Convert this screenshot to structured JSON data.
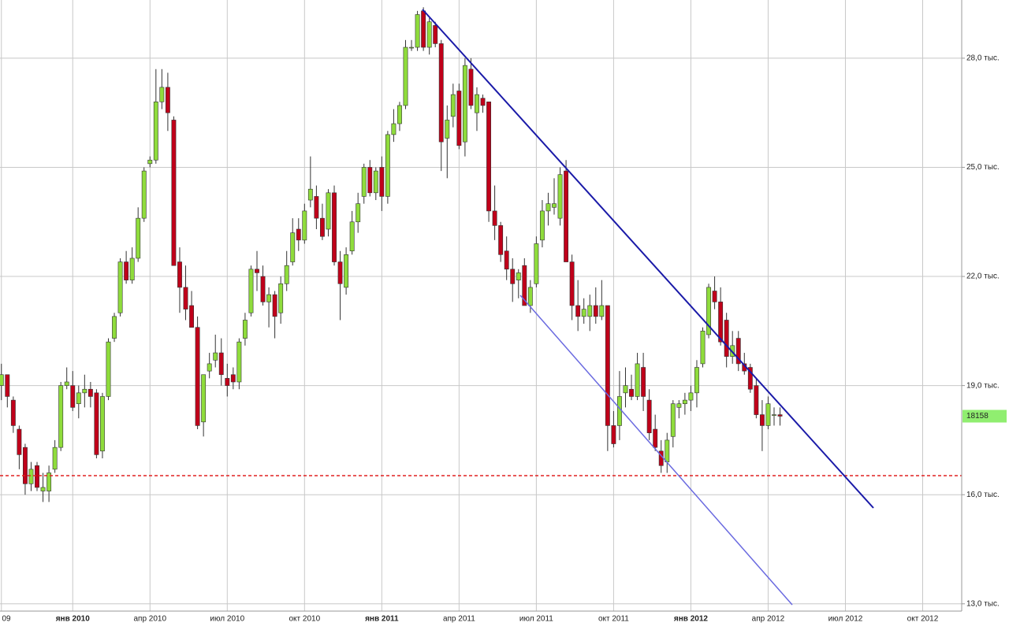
{
  "chart_data": {
    "type": "candlestick",
    "categories": [
      "09",
      null,
      null,
      null,
      null,
      null,
      null,
      null,
      null,
      null,
      null,
      null,
      "янв 2010",
      null,
      null,
      null,
      null,
      null,
      null,
      null,
      null,
      null,
      null,
      null,
      null,
      "апр 2010",
      null,
      null,
      null,
      null,
      null,
      null,
      null,
      null,
      null,
      null,
      null,
      null,
      "июл 2010",
      null,
      null,
      null,
      null,
      null,
      null,
      null,
      null,
      null,
      null,
      null,
      null,
      "окт 2010",
      null,
      null,
      null,
      null,
      null,
      null,
      null,
      null,
      null,
      null,
      null,
      null,
      "янв 2011",
      null,
      null,
      null,
      null,
      null,
      null,
      null,
      null,
      null,
      null,
      null,
      null,
      "апр 2011",
      null,
      null,
      null,
      null,
      null,
      null,
      null,
      null,
      null,
      null,
      null,
      null,
      "июл 2011",
      null,
      null,
      null,
      null,
      null,
      null,
      null,
      null,
      null,
      null,
      null,
      null,
      "окт 2011",
      null,
      null,
      null,
      null,
      null,
      null,
      null,
      null,
      null,
      null,
      null,
      null,
      "янв 2012",
      null,
      null,
      null,
      null,
      null,
      null,
      null,
      null,
      null,
      null,
      null,
      null,
      "апр 2012",
      null,
      null,
      null,
      null,
      null,
      null,
      null,
      null,
      null,
      null,
      null,
      null,
      "июл 2012",
      null,
      null,
      null,
      null,
      null,
      null,
      null,
      null,
      null,
      null,
      null,
      null,
      "окт 2012",
      null,
      null,
      null,
      null,
      null,
      null
    ],
    "ohlc": [
      [
        19000,
        19600,
        18600,
        19300
      ],
      [
        19300,
        19300,
        18400,
        18700
      ],
      [
        18600,
        18700,
        17700,
        17900
      ],
      [
        17800,
        17900,
        16700,
        17100
      ],
      [
        17300,
        17400,
        16000,
        16300
      ],
      [
        16300,
        16900,
        16100,
        16700
      ],
      [
        16800,
        16900,
        16100,
        16200
      ],
      [
        16100,
        16600,
        15800,
        16200
      ],
      [
        16100,
        16800,
        15800,
        16600
      ],
      [
        16700,
        17500,
        16600,
        17300
      ],
      [
        17300,
        19100,
        17200,
        19000
      ],
      [
        19000,
        19500,
        18900,
        19100
      ],
      [
        19000,
        19400,
        18300,
        18400
      ],
      [
        18500,
        19000,
        18100,
        18800
      ],
      [
        18800,
        19300,
        18400,
        18900
      ],
      [
        18900,
        19100,
        18400,
        18700
      ],
      [
        18800,
        18900,
        17000,
        17100
      ],
      [
        17200,
        18800,
        17000,
        18700
      ],
      [
        18700,
        20300,
        18600,
        20200
      ],
      [
        20300,
        21000,
        20200,
        20900
      ],
      [
        21000,
        22500,
        20900,
        22400
      ],
      [
        22400,
        22700,
        21800,
        21900
      ],
      [
        21900,
        22800,
        21800,
        22500
      ],
      [
        22500,
        23900,
        22400,
        23600
      ],
      [
        23600,
        25000,
        23500,
        24900
      ],
      [
        25100,
        25300,
        25000,
        25200
      ],
      [
        25200,
        27700,
        25100,
        26800
      ],
      [
        26800,
        27700,
        26600,
        27200
      ],
      [
        27200,
        27600,
        26000,
        26500
      ],
      [
        26300,
        26400,
        22300,
        22300
      ],
      [
        22400,
        22800,
        21000,
        21700
      ],
      [
        21700,
        22300,
        20800,
        21100
      ],
      [
        21200,
        21600,
        20600,
        20600
      ],
      [
        20600,
        20900,
        17800,
        17900
      ],
      [
        18000,
        19300,
        17600,
        19300
      ],
      [
        19400,
        19900,
        19200,
        19600
      ],
      [
        19700,
        20400,
        19500,
        19900
      ],
      [
        19900,
        20300,
        19000,
        19300
      ],
      [
        19200,
        19600,
        18700,
        19000
      ],
      [
        19300,
        19500,
        18900,
        19100
      ],
      [
        19100,
        20300,
        18900,
        20200
      ],
      [
        20300,
        21000,
        20100,
        20800
      ],
      [
        21000,
        22300,
        20900,
        22200
      ],
      [
        22200,
        22700,
        21600,
        22100
      ],
      [
        22000,
        22300,
        21200,
        21300
      ],
      [
        21300,
        21700,
        20600,
        21500
      ],
      [
        21500,
        21600,
        20300,
        20900
      ],
      [
        21000,
        22000,
        20700,
        21800
      ],
      [
        21800,
        22700,
        21600,
        22300
      ],
      [
        22400,
        23600,
        22300,
        23200
      ],
      [
        23300,
        23600,
        22700,
        23000
      ],
      [
        23000,
        24000,
        22900,
        23800
      ],
      [
        24100,
        25300,
        23900,
        24400
      ],
      [
        24200,
        24500,
        23300,
        23600
      ],
      [
        23600,
        24000,
        23000,
        23100
      ],
      [
        23300,
        24400,
        23100,
        24300
      ],
      [
        24300,
        24500,
        22300,
        22400
      ],
      [
        22400,
        22700,
        20800,
        21800
      ],
      [
        21700,
        22800,
        21500,
        22600
      ],
      [
        22700,
        23800,
        22600,
        23500
      ],
      [
        23500,
        24300,
        23200,
        24000
      ],
      [
        24200,
        25100,
        24000,
        25000
      ],
      [
        25000,
        25200,
        24200,
        24300
      ],
      [
        24300,
        25000,
        24100,
        24900
      ],
      [
        25000,
        25300,
        23800,
        24200
      ],
      [
        24200,
        26000,
        24000,
        25900
      ],
      [
        25900,
        26600,
        25700,
        26200
      ],
      [
        26200,
        26800,
        26000,
        26700
      ],
      [
        26700,
        28500,
        26600,
        28300
      ],
      [
        28300,
        28500,
        28200,
        28300
      ],
      [
        28300,
        29300,
        28200,
        29200
      ],
      [
        29300,
        29400,
        28200,
        28300
      ],
      [
        28300,
        29100,
        28100,
        29000
      ],
      [
        28900,
        29000,
        28300,
        28400
      ],
      [
        28400,
        28500,
        24900,
        25700
      ],
      [
        25800,
        26700,
        24700,
        26300
      ],
      [
        26400,
        27300,
        26100,
        27000
      ],
      [
        27100,
        27300,
        25500,
        25600
      ],
      [
        25700,
        28000,
        25300,
        27800
      ],
      [
        27700,
        28000,
        26600,
        26700
      ],
      [
        26500,
        27200,
        26000,
        27000
      ],
      [
        26900,
        27000,
        26500,
        26700
      ],
      [
        26800,
        26800,
        23500,
        23800
      ],
      [
        23800,
        24500,
        23000,
        23400
      ],
      [
        23400,
        23500,
        22400,
        22600
      ],
      [
        22700,
        23100,
        21900,
        22200
      ],
      [
        22200,
        22500,
        21300,
        21800
      ],
      [
        21900,
        22200,
        21400,
        22100
      ],
      [
        22300,
        22500,
        21200,
        21200
      ],
      [
        21200,
        21900,
        21000,
        21700
      ],
      [
        21800,
        23100,
        21700,
        22900
      ],
      [
        23000,
        24100,
        22800,
        23800
      ],
      [
        23800,
        24300,
        23400,
        24000
      ],
      [
        23900,
        24700,
        23700,
        24000
      ],
      [
        23600,
        25000,
        23400,
        24800
      ],
      [
        24900,
        25200,
        22400,
        22400
      ],
      [
        22400,
        22600,
        20800,
        21200
      ],
      [
        21200,
        21900,
        20500,
        20900
      ],
      [
        20900,
        21400,
        20700,
        21100
      ],
      [
        20900,
        21500,
        20500,
        21200
      ],
      [
        21200,
        21700,
        20700,
        20900
      ],
      [
        20900,
        21900,
        20800,
        21200
      ],
      [
        21200,
        21200,
        17200,
        17900
      ],
      [
        17900,
        18300,
        17300,
        17400
      ],
      [
        17900,
        19400,
        17500,
        18700
      ],
      [
        18800,
        19500,
        18400,
        19000
      ],
      [
        18900,
        19300,
        18600,
        18700
      ],
      [
        18700,
        19900,
        18600,
        19600
      ],
      [
        19500,
        19900,
        18300,
        18700
      ],
      [
        18600,
        18900,
        17500,
        17700
      ],
      [
        17800,
        18200,
        17200,
        17300
      ],
      [
        17200,
        17500,
        16600,
        16800
      ],
      [
        16900,
        17700,
        16600,
        17500
      ],
      [
        17600,
        18600,
        17300,
        18500
      ],
      [
        18400,
        18600,
        18100,
        18500
      ],
      [
        18500,
        18800,
        18200,
        18600
      ],
      [
        18600,
        19000,
        18300,
        18800
      ],
      [
        18800,
        19700,
        18400,
        19500
      ],
      [
        19600,
        20600,
        19500,
        20500
      ],
      [
        20400,
        21800,
        20300,
        21700
      ],
      [
        21600,
        22000,
        21100,
        21300
      ],
      [
        21300,
        21700,
        20100,
        20200
      ],
      [
        20800,
        21000,
        19500,
        19800
      ],
      [
        19800,
        20500,
        19600,
        20100
      ],
      [
        20300,
        20500,
        19400,
        19600
      ],
      [
        19600,
        19900,
        19300,
        19400
      ],
      [
        19500,
        19600,
        18800,
        18900
      ],
      [
        19000,
        19200,
        18100,
        18200
      ],
      [
        18200,
        18600,
        17200,
        17900
      ],
      [
        17900,
        18700,
        17800,
        18500
      ],
      [
        18200,
        18400,
        17900,
        18200
      ],
      [
        18200,
        18400,
        17900,
        18158
      ],
      null,
      null,
      null,
      null,
      null,
      null,
      null,
      null,
      null,
      null,
      null,
      null,
      null,
      null,
      null,
      null,
      null,
      null,
      null,
      null,
      null,
      null,
      null,
      null,
      null,
      null,
      null,
      null,
      null,
      null
    ],
    "up_color": "#8fdc3c",
    "down_color": "#c0001a",
    "ylim": [
      12800,
      29600
    ],
    "yticks": [
      {
        "value": 13000,
        "label": "13,0 тыс."
      },
      {
        "value": 16000,
        "label": "16,0 тыс."
      },
      {
        "value": 19000,
        "label": "19,0 тыс."
      },
      {
        "value": 22000,
        "label": "22,0 тыс."
      },
      {
        "value": 25000,
        "label": "25,0 тыс."
      },
      {
        "value": 28000,
        "label": "28,0 тыс."
      }
    ],
    "grid": true,
    "price_tag": 18158
  }
}
